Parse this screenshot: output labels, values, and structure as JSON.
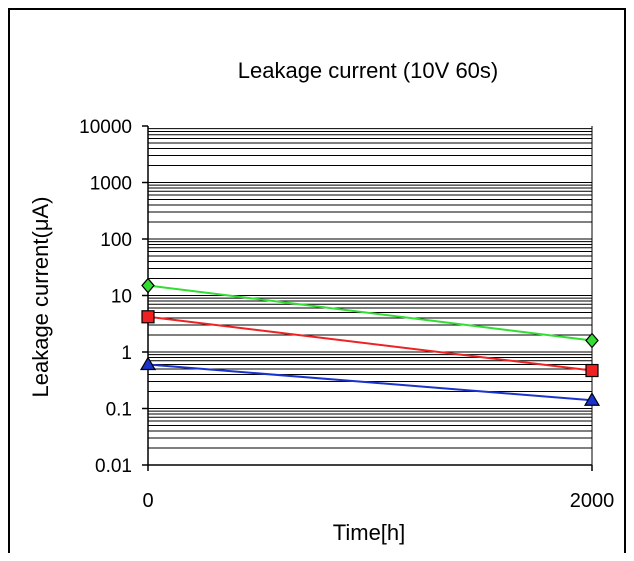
{
  "chart_data": {
    "type": "line",
    "title": "Leakage current (10V 60s)",
    "xlabel": "Time[h]",
    "ylabel": "Leakage current(μA)",
    "x": [
      0,
      2000
    ],
    "x_tick_labels": [
      "0",
      "2000"
    ],
    "y_scale": "log",
    "ylim": [
      0.01,
      10000
    ],
    "y_tick_labels": [
      "10000",
      "1000",
      "100",
      "10",
      "1",
      "0.1",
      "0.01"
    ],
    "grid": true,
    "series": [
      {
        "marker": "diamond",
        "color": "#33dd33",
        "values": [
          15,
          1.6
        ]
      },
      {
        "marker": "square",
        "color": "#ee2222",
        "values": [
          4.2,
          0.47
        ]
      },
      {
        "marker": "triangle",
        "color": "#1a33cc",
        "values": [
          0.6,
          0.14
        ]
      }
    ]
  }
}
